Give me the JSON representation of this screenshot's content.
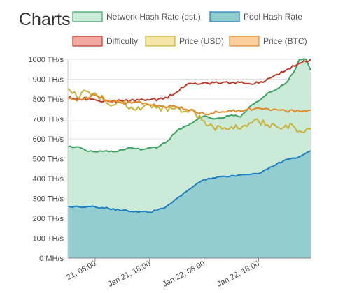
{
  "page": {
    "title": "Charts"
  },
  "chart_data": {
    "type": "area",
    "title": "",
    "xlabel": "",
    "ylabel": "",
    "ylim": [
      0,
      1000
    ],
    "y_unit": "TH/s",
    "y_ticks": [
      {
        "value": 0,
        "label": "0 MH/s"
      },
      {
        "value": 100,
        "label": "100 TH/s"
      },
      {
        "value": 200,
        "label": "200 TH/s"
      },
      {
        "value": 300,
        "label": "300 TH/s"
      },
      {
        "value": 400,
        "label": "400 TH/s"
      },
      {
        "value": 500,
        "label": "500 TH/s"
      },
      {
        "value": 600,
        "label": "600 TH/s"
      },
      {
        "value": 700,
        "label": "700 TH/s"
      },
      {
        "value": 800,
        "label": "800 TH/s"
      },
      {
        "value": 900,
        "label": "900 TH/s"
      },
      {
        "value": 1000,
        "label": "1000 TH/s"
      }
    ],
    "x_range": [
      "2018-01-21 00:00",
      "2018-01-23 05:30"
    ],
    "x_ticks": [
      {
        "x": "2018-01-21 06:00",
        "label": "21, 06:00"
      },
      {
        "x": "2018-01-21 18:00",
        "label": "Jan 21, 18:00"
      },
      {
        "x": "2018-01-22 06:00",
        "label": "Jan 22, 06:00"
      },
      {
        "x": "2018-01-22 18:00",
        "label": "Jan 22, 18:00"
      }
    ],
    "grid": true,
    "legend_position": "top",
    "series": [
      {
        "name": "Network Hash Rate (est.)",
        "kind": "area",
        "color": "#3da363",
        "fill": "#c8ead6",
        "points": [
          [
            "2018-01-21 00:00",
            560
          ],
          [
            "2018-01-21 02:00",
            560
          ],
          [
            "2018-01-21 04:00",
            540
          ],
          [
            "2018-01-21 06:00",
            535
          ],
          [
            "2018-01-21 08:00",
            538
          ],
          [
            "2018-01-21 10:00",
            535
          ],
          [
            "2018-01-21 12:00",
            545
          ],
          [
            "2018-01-21 14:00",
            555
          ],
          [
            "2018-01-21 16:00",
            545
          ],
          [
            "2018-01-21 18:00",
            555
          ],
          [
            "2018-01-21 20:00",
            560
          ],
          [
            "2018-01-21 22:00",
            590
          ],
          [
            "2018-01-22 00:00",
            640
          ],
          [
            "2018-01-22 02:00",
            665
          ],
          [
            "2018-01-22 04:00",
            690
          ],
          [
            "2018-01-22 06:00",
            715
          ],
          [
            "2018-01-22 08:00",
            700
          ],
          [
            "2018-01-22 10:00",
            705
          ],
          [
            "2018-01-22 12:00",
            720
          ],
          [
            "2018-01-22 14:00",
            710
          ],
          [
            "2018-01-22 16:00",
            760
          ],
          [
            "2018-01-22 18:00",
            790
          ],
          [
            "2018-01-22 20:00",
            830
          ],
          [
            "2018-01-22 22:00",
            850
          ],
          [
            "2018-01-23 00:00",
            880
          ],
          [
            "2018-01-23 02:00",
            945
          ],
          [
            "2018-01-23 03:00",
            1000
          ],
          [
            "2018-01-23 04:30",
            1000
          ],
          [
            "2018-01-23 05:30",
            945
          ]
        ]
      },
      {
        "name": "Pool Hash Rate",
        "kind": "area",
        "color": "#1f7fc0",
        "fill": "#8ecccf",
        "points": [
          [
            "2018-01-21 00:00",
            260
          ],
          [
            "2018-01-21 03:00",
            255
          ],
          [
            "2018-01-21 06:00",
            258
          ],
          [
            "2018-01-21 09:00",
            250
          ],
          [
            "2018-01-21 12:00",
            240
          ],
          [
            "2018-01-21 15:00",
            235
          ],
          [
            "2018-01-21 18:00",
            230
          ],
          [
            "2018-01-21 21:00",
            250
          ],
          [
            "2018-01-22 00:00",
            300
          ],
          [
            "2018-01-22 03:00",
            350
          ],
          [
            "2018-01-22 06:00",
            395
          ],
          [
            "2018-01-22 09:00",
            410
          ],
          [
            "2018-01-22 12:00",
            415
          ],
          [
            "2018-01-22 15:00",
            420
          ],
          [
            "2018-01-22 18:00",
            425
          ],
          [
            "2018-01-22 21:00",
            460
          ],
          [
            "2018-01-23 00:00",
            495
          ],
          [
            "2018-01-23 03:00",
            510
          ],
          [
            "2018-01-23 05:30",
            540
          ]
        ]
      },
      {
        "name": "Difficulty",
        "kind": "line",
        "color": "#c0392b",
        "fill": "#f4a9a0",
        "points": [
          [
            "2018-01-21 00:00",
            805
          ],
          [
            "2018-01-21 05:00",
            800
          ],
          [
            "2018-01-21 08:00",
            790
          ],
          [
            "2018-01-21 12:00",
            790
          ],
          [
            "2018-01-21 18:00",
            795
          ],
          [
            "2018-01-21 21:00",
            800
          ],
          [
            "2018-01-22 00:00",
            835
          ],
          [
            "2018-01-22 02:00",
            870
          ],
          [
            "2018-01-22 04:00",
            880
          ],
          [
            "2018-01-22 12:00",
            882
          ],
          [
            "2018-01-22 18:00",
            880
          ],
          [
            "2018-01-22 21:00",
            910
          ],
          [
            "2018-01-23 00:00",
            945
          ],
          [
            "2018-01-23 03:00",
            980
          ],
          [
            "2018-01-23 05:30",
            1000
          ]
        ]
      },
      {
        "name": "Price (USD)",
        "kind": "line",
        "color": "#c9b23b",
        "fill": "#f5e6a8",
        "points": [
          [
            "2018-01-21 00:00",
            855
          ],
          [
            "2018-01-21 02:00",
            810
          ],
          [
            "2018-01-21 04:00",
            840
          ],
          [
            "2018-01-21 06:00",
            830
          ],
          [
            "2018-01-21 08:00",
            800
          ],
          [
            "2018-01-21 10:00",
            770
          ],
          [
            "2018-01-21 12:00",
            780
          ],
          [
            "2018-01-21 14:00",
            760
          ],
          [
            "2018-01-21 16:00",
            745
          ],
          [
            "2018-01-21 18:00",
            770
          ],
          [
            "2018-01-21 20:00",
            760
          ],
          [
            "2018-01-21 22:00",
            740
          ],
          [
            "2018-01-22 00:00",
            760
          ],
          [
            "2018-01-22 02:00",
            740
          ],
          [
            "2018-01-22 04:00",
            730
          ],
          [
            "2018-01-22 06:00",
            690
          ],
          [
            "2018-01-22 08:00",
            660
          ],
          [
            "2018-01-22 10:00",
            650
          ],
          [
            "2018-01-22 12:00",
            660
          ],
          [
            "2018-01-22 14:00",
            650
          ],
          [
            "2018-01-22 16:00",
            680
          ],
          [
            "2018-01-22 18:00",
            690
          ],
          [
            "2018-01-22 20:00",
            670
          ],
          [
            "2018-01-22 22:00",
            660
          ],
          [
            "2018-01-23 00:00",
            670
          ],
          [
            "2018-01-23 02:00",
            655
          ],
          [
            "2018-01-23 04:00",
            630
          ],
          [
            "2018-01-23 05:30",
            648
          ]
        ]
      },
      {
        "name": "Price (BTC)",
        "kind": "line",
        "color": "#e08a2c",
        "fill": "#fbcf9e",
        "points": [
          [
            "2018-01-21 00:00",
            800
          ],
          [
            "2018-01-21 03:00",
            795
          ],
          [
            "2018-01-21 06:00",
            820
          ],
          [
            "2018-01-21 09:00",
            790
          ],
          [
            "2018-01-21 12:00",
            780
          ],
          [
            "2018-01-21 15:00",
            785
          ],
          [
            "2018-01-21 18:00",
            770
          ],
          [
            "2018-01-21 21:00",
            765
          ],
          [
            "2018-01-22 00:00",
            760
          ],
          [
            "2018-01-22 03:00",
            745
          ],
          [
            "2018-01-22 06:00",
            725
          ],
          [
            "2018-01-22 09:00",
            735
          ],
          [
            "2018-01-22 12:00",
            740
          ],
          [
            "2018-01-22 15:00",
            745
          ],
          [
            "2018-01-22 18:00",
            755
          ],
          [
            "2018-01-22 21:00",
            745
          ],
          [
            "2018-01-23 00:00",
            740
          ],
          [
            "2018-01-23 03:00",
            740
          ],
          [
            "2018-01-23 05:30",
            745
          ]
        ]
      }
    ]
  }
}
